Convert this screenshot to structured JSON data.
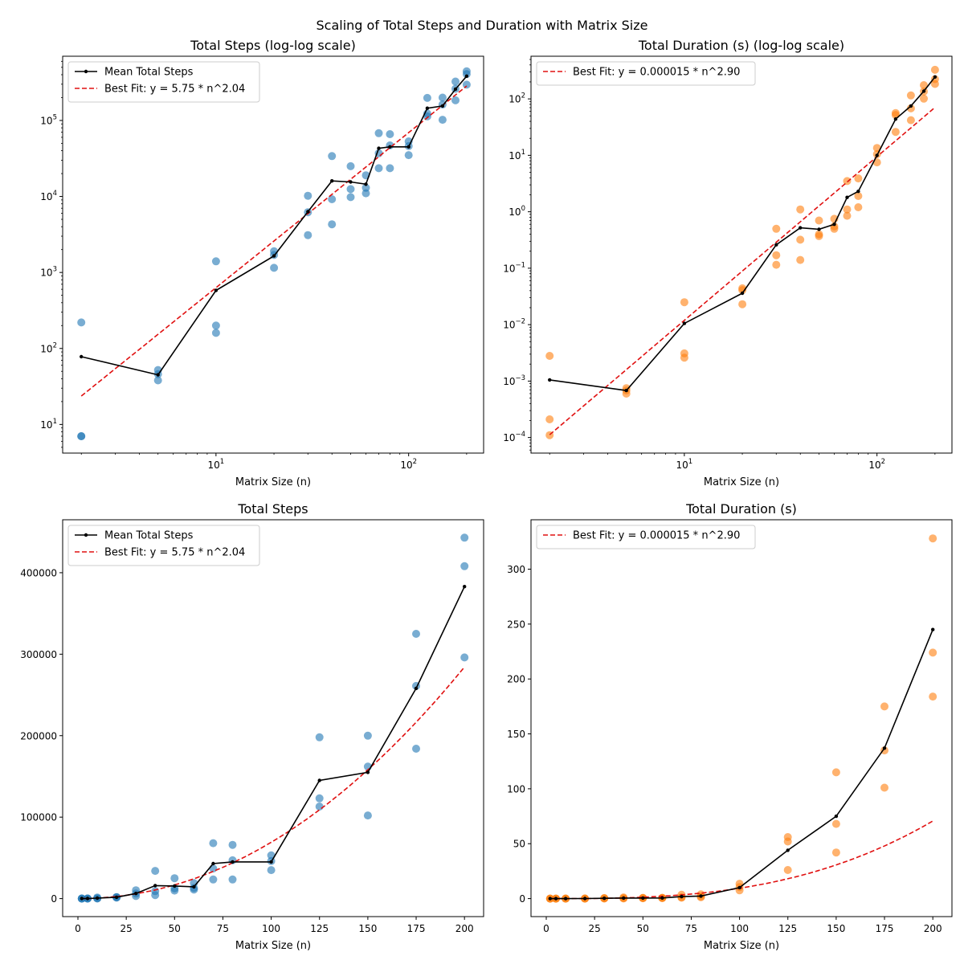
{
  "figure_title": "Scaling of Total Steps and Duration with Matrix Size",
  "colors": {
    "steps_points": "#1f77b4",
    "duration_points": "#ff7f0e",
    "mean_line": "#000000",
    "fit_line": "#e01010",
    "frame": "#000000"
  },
  "chart_data": [
    {
      "id": "steps-loglog",
      "type": "scatter",
      "title": "Total Steps (log-log scale)",
      "xlabel": "Matrix Size (n)",
      "ylabel": "",
      "xscale": "log",
      "yscale": "log",
      "xlim": [
        1.6,
        245
      ],
      "ylim": [
        4.2,
        700000
      ],
      "xticks": [
        {
          "v": 10,
          "label": "10",
          "sup": "1"
        },
        {
          "v": 100,
          "label": "10",
          "sup": "2"
        }
      ],
      "yticks": [
        {
          "v": 10,
          "label": "10",
          "sup": "1"
        },
        {
          "v": 100,
          "label": "10",
          "sup": "2"
        },
        {
          "v": 1000,
          "label": "10",
          "sup": "3"
        },
        {
          "v": 10000,
          "label": "10",
          "sup": "4"
        },
        {
          "v": 100000,
          "label": "10",
          "sup": "5"
        }
      ],
      "point_color_key": "steps_points",
      "grid": false,
      "legend_position": "upper-left",
      "legend": [
        {
          "type": "mean",
          "label": "Mean Total Steps"
        },
        {
          "type": "fit",
          "label": "Best Fit: y = 5.75 * n^2.04"
        }
      ],
      "fit": {
        "a": 5.75,
        "b": 2.04
      },
      "mean": {
        "x": [
          2,
          5,
          10,
          20,
          30,
          40,
          50,
          60,
          70,
          80,
          100,
          125,
          150,
          175,
          200
        ],
        "y": [
          78,
          45,
          580,
          1650,
          6300,
          16000,
          15500,
          14500,
          43000,
          45000,
          45000,
          145000,
          155000,
          258000,
          383000
        ]
      },
      "points": [
        [
          2,
          220
        ],
        [
          2,
          7
        ],
        [
          2,
          7
        ],
        [
          5,
          52
        ],
        [
          5,
          46
        ],
        [
          5,
          38
        ],
        [
          10,
          1400
        ],
        [
          10,
          200
        ],
        [
          10,
          160
        ],
        [
          20,
          1900
        ],
        [
          20,
          1700
        ],
        [
          20,
          1150
        ],
        [
          30,
          10200
        ],
        [
          30,
          6200
        ],
        [
          30,
          3100
        ],
        [
          40,
          34000
        ],
        [
          40,
          9200
        ],
        [
          40,
          4300
        ],
        [
          50,
          25000
        ],
        [
          50,
          12500
        ],
        [
          50,
          9800
        ],
        [
          60,
          19000
        ],
        [
          60,
          13000
        ],
        [
          60,
          11000
        ],
        [
          70,
          68000
        ],
        [
          70,
          37000
        ],
        [
          70,
          23500
        ],
        [
          80,
          66000
        ],
        [
          80,
          47000
        ],
        [
          80,
          23500
        ],
        [
          100,
          53000
        ],
        [
          100,
          46000
        ],
        [
          100,
          35000
        ],
        [
          125,
          198000
        ],
        [
          125,
          123000
        ],
        [
          125,
          113000
        ],
        [
          150,
          200000
        ],
        [
          150,
          162000
        ],
        [
          150,
          102000
        ],
        [
          175,
          325000
        ],
        [
          175,
          261000
        ],
        [
          175,
          184000
        ],
        [
          200,
          443000
        ],
        [
          200,
          408000
        ],
        [
          200,
          296000
        ]
      ]
    },
    {
      "id": "duration-loglog",
      "type": "scatter",
      "title": "Total Duration (s) (log-log scale)",
      "xlabel": "Matrix Size (n)",
      "ylabel": "",
      "xscale": "log",
      "yscale": "log",
      "xlim": [
        1.6,
        245
      ],
      "ylim": [
        5.3e-05,
        570
      ],
      "xticks": [
        {
          "v": 10,
          "label": "10",
          "sup": "1"
        },
        {
          "v": 100,
          "label": "10",
          "sup": "2"
        }
      ],
      "yticks": [
        {
          "v": 0.0001,
          "label": "10",
          "sup": "−4"
        },
        {
          "v": 0.001,
          "label": "10",
          "sup": "−3"
        },
        {
          "v": 0.01,
          "label": "10",
          "sup": "−2"
        },
        {
          "v": 0.1,
          "label": "10",
          "sup": "−1"
        },
        {
          "v": 1,
          "label": "10",
          "sup": "0"
        },
        {
          "v": 10,
          "label": "10",
          "sup": "1"
        },
        {
          "v": 100,
          "label": "10",
          "sup": "2"
        }
      ],
      "point_color_key": "duration_points",
      "grid": false,
      "legend_position": "upper-left",
      "legend": [
        {
          "type": "fit",
          "label": "Best Fit: y = 0.000015 * n^2.90"
        }
      ],
      "fit": {
        "a": 1.5e-05,
        "b": 2.9
      },
      "mean": {
        "x": [
          2,
          5,
          10,
          20,
          30,
          40,
          50,
          60,
          70,
          80,
          100,
          125,
          150,
          175,
          200
        ],
        "y": [
          0.00105,
          0.00068,
          0.0105,
          0.036,
          0.26,
          0.52,
          0.49,
          0.6,
          1.8,
          2.3,
          10,
          44,
          75,
          137,
          245
        ]
      },
      "points": [
        [
          2,
          0.0028
        ],
        [
          2,
          0.00021
        ],
        [
          2,
          0.00011
        ],
        [
          5,
          0.00075
        ],
        [
          5,
          0.00068
        ],
        [
          5,
          0.0006
        ],
        [
          10,
          0.025
        ],
        [
          10,
          0.0031
        ],
        [
          10,
          0.0026
        ],
        [
          20,
          0.044
        ],
        [
          20,
          0.041
        ],
        [
          20,
          0.023
        ],
        [
          30,
          0.5
        ],
        [
          30,
          0.17
        ],
        [
          30,
          0.115
        ],
        [
          40,
          1.1
        ],
        [
          40,
          0.32
        ],
        [
          40,
          0.14
        ],
        [
          50,
          0.7
        ],
        [
          50,
          0.4
        ],
        [
          50,
          0.37
        ],
        [
          60,
          0.75
        ],
        [
          60,
          0.55
        ],
        [
          60,
          0.5
        ],
        [
          70,
          3.5
        ],
        [
          70,
          1.1
        ],
        [
          70,
          0.85
        ],
        [
          80,
          3.9
        ],
        [
          80,
          1.9
        ],
        [
          80,
          1.2
        ],
        [
          100,
          13.5
        ],
        [
          100,
          10.5
        ],
        [
          100,
          7.5
        ],
        [
          125,
          56
        ],
        [
          125,
          52
        ],
        [
          125,
          26
        ],
        [
          150,
          115
        ],
        [
          150,
          68
        ],
        [
          150,
          42
        ],
        [
          175,
          175
        ],
        [
          175,
          135
        ],
        [
          175,
          101
        ],
        [
          200,
          328
        ],
        [
          200,
          224
        ],
        [
          200,
          184
        ]
      ]
    },
    {
      "id": "steps-linear",
      "type": "scatter",
      "title": "Total Steps",
      "xlabel": "Matrix Size (n)",
      "ylabel": "",
      "xscale": "linear",
      "yscale": "linear",
      "xlim": [
        -7.9,
        209.9
      ],
      "ylim": [
        -22100,
        465000
      ],
      "xticks": [
        {
          "v": 0,
          "label": "0"
        },
        {
          "v": 25,
          "label": "25"
        },
        {
          "v": 50,
          "label": "50"
        },
        {
          "v": 75,
          "label": "75"
        },
        {
          "v": 100,
          "label": "100"
        },
        {
          "v": 125,
          "label": "125"
        },
        {
          "v": 150,
          "label": "150"
        },
        {
          "v": 175,
          "label": "175"
        },
        {
          "v": 200,
          "label": "200"
        }
      ],
      "yticks": [
        {
          "v": 0,
          "label": "0"
        },
        {
          "v": 100000,
          "label": "100000"
        },
        {
          "v": 200000,
          "label": "200000"
        },
        {
          "v": 300000,
          "label": "300000"
        },
        {
          "v": 400000,
          "label": "400000"
        }
      ],
      "point_color_key": "steps_points",
      "grid": false,
      "legend_position": "upper-left",
      "legend": [
        {
          "type": "mean",
          "label": "Mean Total Steps"
        },
        {
          "type": "fit",
          "label": "Best Fit: y = 5.75 * n^2.04"
        }
      ],
      "fit": {
        "a": 5.75,
        "b": 2.04
      },
      "mean": {
        "x": [
          2,
          5,
          10,
          20,
          30,
          40,
          50,
          60,
          70,
          80,
          100,
          125,
          150,
          175,
          200
        ],
        "y": [
          78,
          45,
          580,
          1650,
          6300,
          16000,
          15500,
          14500,
          43000,
          45000,
          45000,
          145000,
          155000,
          258000,
          383000
        ]
      },
      "points": [
        [
          2,
          220
        ],
        [
          2,
          7
        ],
        [
          2,
          7
        ],
        [
          5,
          52
        ],
        [
          5,
          46
        ],
        [
          5,
          38
        ],
        [
          10,
          1400
        ],
        [
          10,
          200
        ],
        [
          10,
          160
        ],
        [
          20,
          1900
        ],
        [
          20,
          1700
        ],
        [
          20,
          1150
        ],
        [
          30,
          10200
        ],
        [
          30,
          6200
        ],
        [
          30,
          3100
        ],
        [
          40,
          34000
        ],
        [
          40,
          9200
        ],
        [
          40,
          4300
        ],
        [
          50,
          25000
        ],
        [
          50,
          12500
        ],
        [
          50,
          9800
        ],
        [
          60,
          19000
        ],
        [
          60,
          13000
        ],
        [
          60,
          11000
        ],
        [
          70,
          68000
        ],
        [
          70,
          37000
        ],
        [
          70,
          23500
        ],
        [
          80,
          66000
        ],
        [
          80,
          47000
        ],
        [
          80,
          23500
        ],
        [
          100,
          53000
        ],
        [
          100,
          46000
        ],
        [
          100,
          35000
        ],
        [
          125,
          198000
        ],
        [
          125,
          123000
        ],
        [
          125,
          113000
        ],
        [
          150,
          200000
        ],
        [
          150,
          162000
        ],
        [
          150,
          102000
        ],
        [
          175,
          325000
        ],
        [
          175,
          261000
        ],
        [
          175,
          184000
        ],
        [
          200,
          443000
        ],
        [
          200,
          408000
        ],
        [
          200,
          296000
        ]
      ]
    },
    {
      "id": "duration-linear",
      "type": "scatter",
      "title": "Total Duration (s)",
      "xlabel": "Matrix Size (n)",
      "ylabel": "",
      "xscale": "linear",
      "yscale": "linear",
      "xlim": [
        -7.9,
        209.9
      ],
      "ylim": [
        -16.4,
        345
      ],
      "xticks": [
        {
          "v": 0,
          "label": "0"
        },
        {
          "v": 25,
          "label": "25"
        },
        {
          "v": 50,
          "label": "50"
        },
        {
          "v": 75,
          "label": "75"
        },
        {
          "v": 100,
          "label": "100"
        },
        {
          "v": 125,
          "label": "125"
        },
        {
          "v": 150,
          "label": "150"
        },
        {
          "v": 175,
          "label": "175"
        },
        {
          "v": 200,
          "label": "200"
        }
      ],
      "yticks": [
        {
          "v": 0,
          "label": "0"
        },
        {
          "v": 50,
          "label": "50"
        },
        {
          "v": 100,
          "label": "100"
        },
        {
          "v": 150,
          "label": "150"
        },
        {
          "v": 200,
          "label": "200"
        },
        {
          "v": 250,
          "label": "250"
        },
        {
          "v": 300,
          "label": "300"
        }
      ],
      "point_color_key": "duration_points",
      "grid": false,
      "legend_position": "upper-left",
      "legend": [
        {
          "type": "fit",
          "label": "Best Fit: y = 0.000015 * n^2.90"
        }
      ],
      "fit": {
        "a": 1.5e-05,
        "b": 2.9
      },
      "mean": {
        "x": [
          2,
          5,
          10,
          20,
          30,
          40,
          50,
          60,
          70,
          80,
          100,
          125,
          150,
          175,
          200
        ],
        "y": [
          0.00105,
          0.00068,
          0.0105,
          0.036,
          0.26,
          0.52,
          0.49,
          0.6,
          1.8,
          2.3,
          10,
          44,
          75,
          137,
          245
        ]
      },
      "points": [
        [
          2,
          0.0028
        ],
        [
          2,
          0.00021
        ],
        [
          2,
          0.00011
        ],
        [
          5,
          0.00075
        ],
        [
          5,
          0.00068
        ],
        [
          5,
          0.0006
        ],
        [
          10,
          0.025
        ],
        [
          10,
          0.0031
        ],
        [
          10,
          0.0026
        ],
        [
          20,
          0.044
        ],
        [
          20,
          0.041
        ],
        [
          20,
          0.023
        ],
        [
          30,
          0.5
        ],
        [
          30,
          0.17
        ],
        [
          30,
          0.115
        ],
        [
          40,
          1.1
        ],
        [
          40,
          0.32
        ],
        [
          40,
          0.14
        ],
        [
          50,
          0.7
        ],
        [
          50,
          0.4
        ],
        [
          50,
          0.37
        ],
        [
          60,
          0.75
        ],
        [
          60,
          0.55
        ],
        [
          60,
          0.5
        ],
        [
          70,
          3.5
        ],
        [
          70,
          1.1
        ],
        [
          70,
          0.85
        ],
        [
          80,
          3.9
        ],
        [
          80,
          1.9
        ],
        [
          80,
          1.2
        ],
        [
          100,
          13.5
        ],
        [
          100,
          10.5
        ],
        [
          100,
          7.5
        ],
        [
          125,
          56
        ],
        [
          125,
          52
        ],
        [
          125,
          26
        ],
        [
          150,
          115
        ],
        [
          150,
          68
        ],
        [
          150,
          42
        ],
        [
          175,
          175
        ],
        [
          175,
          135
        ],
        [
          175,
          101
        ],
        [
          200,
          328
        ],
        [
          200,
          224
        ],
        [
          200,
          184
        ]
      ]
    }
  ]
}
